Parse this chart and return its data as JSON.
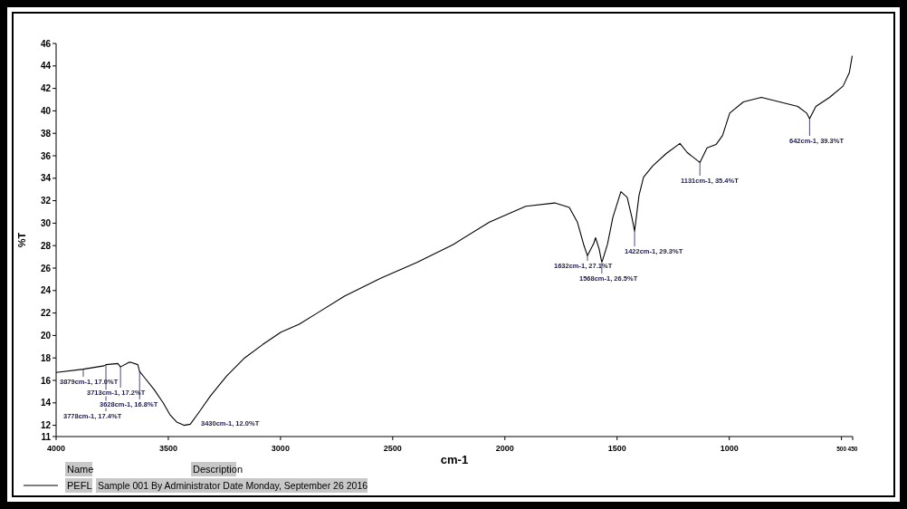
{
  "chart_data": {
    "type": "line",
    "xlabel": "cm-1",
    "ylabel": "%T",
    "xlim": [
      4000,
      450
    ],
    "xticks": [
      4000,
      3500,
      3000,
      2500,
      2000,
      1500,
      1000,
      500,
      450
    ],
    "ylim": [
      11,
      46
    ],
    "yticks": [
      11,
      12,
      14,
      16,
      18,
      20,
      22,
      24,
      26,
      28,
      30,
      32,
      34,
      36,
      38,
      40,
      42,
      44,
      46
    ],
    "legend": "bottom left",
    "grid": false,
    "series": [
      {
        "name": "PEFL",
        "color": "#000000",
        "x": [
          4000,
          3879,
          3786,
          3778,
          3725,
          3713,
          3677,
          3665,
          3636,
          3628,
          3604,
          3564,
          3523,
          3491,
          3463,
          3430,
          3402,
          3362,
          3313,
          3240,
          3160,
          3079,
          2998,
          2917,
          2836,
          2715,
          2554,
          2392,
          2230,
          2069,
          1907,
          1778,
          1713,
          1677,
          1649,
          1632,
          1604,
          1596,
          1580,
          1568,
          1543,
          1519,
          1483,
          1455,
          1434,
          1422,
          1402,
          1382,
          1341,
          1281,
          1220,
          1188,
          1131,
          1099,
          1059,
          1030,
          998,
          937,
          857,
          776,
          695,
          655,
          642,
          614,
          553,
          493,
          465,
          452
        ],
        "values": [
          16.7,
          17.0,
          17.3,
          17.4,
          17.5,
          17.2,
          17.6,
          17.6,
          17.4,
          16.8,
          16.2,
          15.2,
          14.0,
          12.9,
          12.3,
          12.0,
          12.1,
          13.2,
          14.6,
          16.4,
          18.0,
          19.2,
          20.3,
          21.0,
          22.0,
          23.5,
          25.1,
          26.5,
          28.1,
          30.1,
          31.5,
          31.8,
          31.4,
          30.1,
          28.1,
          27.1,
          28.2,
          28.7,
          27.7,
          26.5,
          28.1,
          30.5,
          32.8,
          32.3,
          30.5,
          29.3,
          32.5,
          34.1,
          35.1,
          36.2,
          37.1,
          36.3,
          35.4,
          36.7,
          37.0,
          37.8,
          39.8,
          40.8,
          41.2,
          40.8,
          40.4,
          39.8,
          39.3,
          40.4,
          41.2,
          42.2,
          43.4,
          44.9
        ]
      }
    ],
    "annotations": [
      "Name",
      "Description",
      "Sample 001 By Administrator Date Monday, September 26 2016",
      {
        "text": "3879cm-1, 17.0%T",
        "x": 3879,
        "y": 17.0
      },
      {
        "text": "3778cm-1, 17.4%T",
        "x": 3778,
        "y": 17.4
      },
      {
        "text": "3713cm-1, 17.2%T",
        "x": 3713,
        "y": 17.2
      },
      {
        "text": "3628cm-1, 16.8%T",
        "x": 3628,
        "y": 16.8
      },
      {
        "text": "3430cm-1, 12.0%T",
        "x": 3430,
        "y": 12.0
      },
      {
        "text": "1632cm-1, 27.1%T",
        "x": 1632,
        "y": 27.1
      },
      {
        "text": "1568cm-1, 26.5%T",
        "x": 1568,
        "y": 26.5
      },
      {
        "text": "1422cm-1, 29.3%T",
        "x": 1422,
        "y": 29.3
      },
      {
        "text": "1131cm-1, 35.4%T",
        "x": 1131,
        "y": 35.4
      },
      {
        "text": "642cm-1, 39.3%T",
        "x": 642,
        "y": 39.3
      }
    ]
  }
}
